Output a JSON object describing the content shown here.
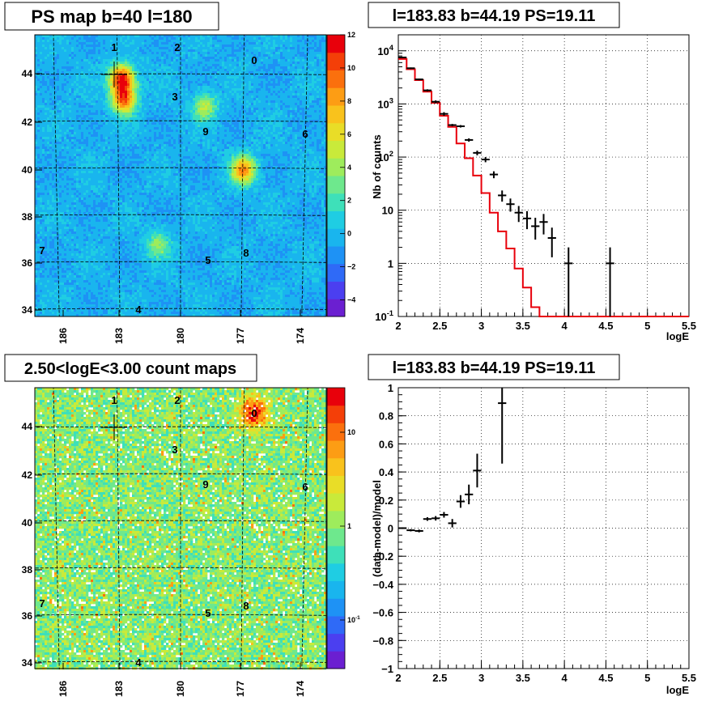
{
  "colors": {
    "model_line": "#e8000b",
    "data_points": "#000000",
    "frame": "#000000",
    "title_box_bg": "#ffffff"
  },
  "panels": {
    "ps_map": {
      "title": "PS map b=40 l=180",
      "type": "heatmap",
      "x_tick_labels": [
        "186",
        "183",
        "180",
        "177",
        "174"
      ],
      "y_tick_labels": [
        "34",
        "36",
        "38",
        "40",
        "42",
        "44"
      ],
      "colorbar_labels": [
        "12",
        "10",
        "8",
        "6",
        "4",
        "2",
        "0",
        "−2",
        "−4"
      ],
      "colorbar_range": [
        -5,
        12
      ],
      "source_labels": [
        "1",
        "2",
        "0",
        "3",
        "9",
        "6",
        "7",
        "5",
        "8",
        "4"
      ],
      "hotspots": [
        {
          "l": 182.9,
          "b": 43.8,
          "level": 12
        },
        {
          "l": 182.8,
          "b": 42.9,
          "level": 10
        },
        {
          "l": 178.8,
          "b": 42.6,
          "level": 5
        },
        {
          "l": 176.9,
          "b": 39.9,
          "level": 9
        },
        {
          "l": 181.1,
          "b": 36.7,
          "level": 4
        }
      ]
    },
    "spectrum": {
      "title": "l=183.83 b=44.19 PS=19.11",
      "chart_data": {
        "type": "line",
        "xlabel": "logE",
        "ylabel": "Nb of counts",
        "xlim": [
          2,
          5.5
        ],
        "ylim": [
          0.1,
          20000
        ],
        "y_log": true,
        "grid": true,
        "x_tick_labels": [
          "2",
          "2.5",
          "3",
          "3.5",
          "4",
          "4.5",
          "5",
          "5.5"
        ],
        "y_tick_labels": [
          "10^{-1}",
          "1",
          "10",
          "10^{2}",
          "10^{3}",
          "10^{4}"
        ],
        "model_edges": [
          2.0,
          2.1,
          2.2,
          2.3,
          2.4,
          2.5,
          2.6,
          2.7,
          2.8,
          2.9,
          3.0,
          3.1,
          3.2,
          3.3,
          3.4,
          3.5,
          3.6,
          3.7,
          3.8,
          3.9,
          4.0,
          4.1,
          4.2,
          4.3,
          4.4,
          4.5,
          4.6,
          4.7,
          4.8,
          4.9,
          5.0,
          5.1,
          5.2,
          5.3,
          5.4,
          5.5
        ],
        "model_values": [
          7000,
          4500,
          2800,
          1700,
          1050,
          600,
          370,
          180,
          95,
          45,
          21,
          9,
          4,
          1.9,
          0.8,
          0.35,
          0.15,
          0.1,
          0.1,
          0.1,
          0.1,
          0.1,
          0.1,
          0.1,
          0.1,
          0.1,
          0.1,
          0.1,
          0.1,
          0.1,
          0.1,
          0.1,
          0.1,
          0.1,
          0.1
        ],
        "data_points": [
          {
            "x": 2.05,
            "y": 7500,
            "ylo": 7300,
            "yhi": 7700
          },
          {
            "x": 2.15,
            "y": 4700,
            "ylo": 4550,
            "yhi": 4850
          },
          {
            "x": 2.25,
            "y": 2900,
            "ylo": 2790,
            "yhi": 3010
          },
          {
            "x": 2.35,
            "y": 1800,
            "ylo": 1715,
            "yhi": 1885
          },
          {
            "x": 2.45,
            "y": 1100,
            "ylo": 1035,
            "yhi": 1165
          },
          {
            "x": 2.55,
            "y": 650,
            "ylo": 600,
            "yhi": 700
          },
          {
            "x": 2.65,
            "y": 400,
            "ylo": 380,
            "yhi": 420
          },
          {
            "x": 2.75,
            "y": 380,
            "ylo": 360,
            "yhi": 400
          },
          {
            "x": 2.85,
            "y": 210,
            "ylo": 195,
            "yhi": 225
          },
          {
            "x": 2.95,
            "y": 120,
            "ylo": 108,
            "yhi": 132
          },
          {
            "x": 3.05,
            "y": 90,
            "ylo": 80,
            "yhi": 100
          },
          {
            "x": 3.15,
            "y": 47,
            "ylo": 40,
            "yhi": 54
          },
          {
            "x": 3.25,
            "y": 19,
            "ylo": 14.5,
            "yhi": 23.5
          },
          {
            "x": 3.35,
            "y": 13,
            "ylo": 9.4,
            "yhi": 16.6
          },
          {
            "x": 3.45,
            "y": 9,
            "ylo": 6,
            "yhi": 12
          },
          {
            "x": 3.55,
            "y": 7,
            "ylo": 4.4,
            "yhi": 9.6
          },
          {
            "x": 3.65,
            "y": 5,
            "ylo": 2.8,
            "yhi": 7.2
          },
          {
            "x": 3.75,
            "y": 6,
            "ylo": 3.5,
            "yhi": 8.5
          },
          {
            "x": 3.85,
            "y": 3,
            "ylo": 1.3,
            "yhi": 4.7
          },
          {
            "x": 4.05,
            "y": 1,
            "ylo": 0.1,
            "yhi": 2.0
          },
          {
            "x": 4.55,
            "y": 1,
            "ylo": 0.1,
            "yhi": 2.0
          }
        ]
      }
    },
    "count_map": {
      "title": "2.50<logE<3.00 count maps",
      "type": "heatmap",
      "x_tick_labels": [
        "186",
        "183",
        "180",
        "177",
        "174"
      ],
      "y_tick_labels": [
        "34",
        "36",
        "38",
        "40",
        "42",
        "44"
      ],
      "colorbar_labels": [
        "10",
        "1",
        "10^{-1}"
      ],
      "colorbar_log": true,
      "source_labels": [
        "1",
        "2",
        "0",
        "3",
        "9",
        "6",
        "7",
        "5",
        "8",
        "4"
      ],
      "hotspots": [
        {
          "l": 176.4,
          "b": 44.6,
          "level": 14
        }
      ]
    },
    "residual": {
      "title": "l=183.83 b=44.19 PS=19.11",
      "chart_data": {
        "type": "scatter",
        "xlabel": "logE",
        "ylabel": "(data-model)/model",
        "xlim": [
          2,
          5.5
        ],
        "ylim": [
          -1,
          1
        ],
        "grid": true,
        "x_tick_labels": [
          "2",
          "2.5",
          "3",
          "3.5",
          "4",
          "4.5",
          "5",
          "5.5"
        ],
        "y_tick_labels": [
          "−1",
          "−0.8",
          "−0.6",
          "−0.4",
          "−0.2",
          "0",
          "0.2",
          "0.4",
          "0.6",
          "0.8",
          "1"
        ],
        "data_points": [
          {
            "x": 2.05,
            "y": 0.0,
            "ylo": -0.006,
            "yhi": 0.006
          },
          {
            "x": 2.15,
            "y": -0.015,
            "ylo": -0.023,
            "yhi": -0.007
          },
          {
            "x": 2.25,
            "y": -0.02,
            "ylo": -0.03,
            "yhi": -0.01
          },
          {
            "x": 2.35,
            "y": 0.065,
            "ylo": 0.052,
            "yhi": 0.078
          },
          {
            "x": 2.45,
            "y": 0.07,
            "ylo": 0.054,
            "yhi": 0.086
          },
          {
            "x": 2.55,
            "y": 0.095,
            "ylo": 0.075,
            "yhi": 0.115
          },
          {
            "x": 2.65,
            "y": 0.035,
            "ylo": 0.005,
            "yhi": 0.065
          },
          {
            "x": 2.75,
            "y": 0.19,
            "ylo": 0.145,
            "yhi": 0.235
          },
          {
            "x": 2.85,
            "y": 0.24,
            "ylo": 0.17,
            "yhi": 0.31
          },
          {
            "x": 2.95,
            "y": 0.41,
            "ylo": 0.29,
            "yhi": 0.53
          },
          {
            "x": 3.25,
            "y": 0.89,
            "ylo": 0.46,
            "yhi": 1.0
          }
        ]
      }
    }
  }
}
